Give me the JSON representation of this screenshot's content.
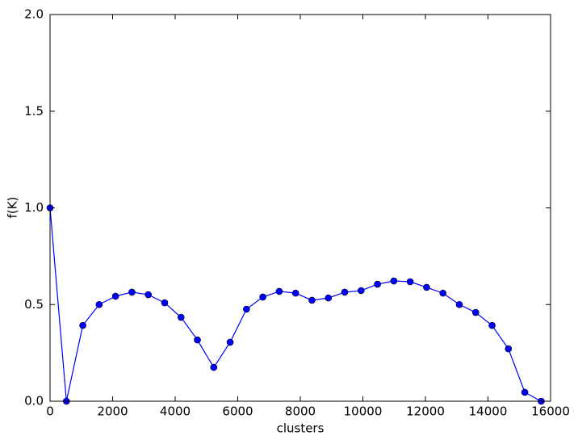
{
  "chart_data": {
    "type": "line",
    "xlabel": "clusters",
    "ylabel": "f(K)",
    "x": [
      0,
      523,
      1047,
      1570,
      2093,
      2617,
      3140,
      3663,
      4187,
      4710,
      5233,
      5757,
      6280,
      6803,
      7327,
      7850,
      8373,
      8897,
      9420,
      9943,
      10467,
      10990,
      11513,
      12037,
      12560,
      13083,
      13607,
      14130,
      14653,
      15177,
      15700
    ],
    "series": [
      {
        "color": "#0000ff",
        "values": [
          1.0,
          0.0,
          0.392,
          0.5,
          0.543,
          0.564,
          0.551,
          0.509,
          0.434,
          0.317,
          0.175,
          0.305,
          0.476,
          0.539,
          0.568,
          0.559,
          0.522,
          0.534,
          0.564,
          0.572,
          0.605,
          0.622,
          0.618,
          0.589,
          0.559,
          0.5,
          0.459,
          0.392,
          0.271,
          0.046,
          0.0
        ]
      }
    ],
    "xlim": [
      0,
      16000
    ],
    "xticks": [
      0,
      2000,
      4000,
      6000,
      8000,
      10000,
      12000,
      14000,
      16000
    ],
    "ylim": [
      0,
      2.0
    ],
    "yticks": [
      {
        "value": 0,
        "label": "0.0"
      },
      {
        "value": 0.5,
        "label": "0.5"
      },
      {
        "value": 1.0,
        "label": "1.0"
      },
      {
        "value": 1.5,
        "label": "1.5"
      },
      {
        "value": 2.0,
        "label": "2.0"
      }
    ],
    "grid": false
  }
}
